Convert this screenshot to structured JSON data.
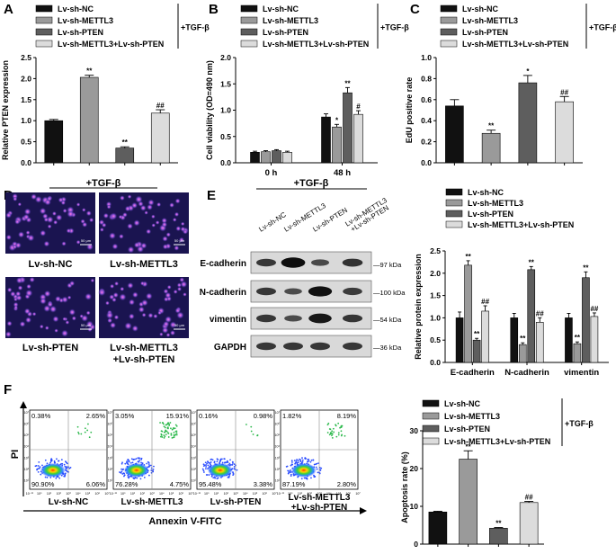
{
  "colors": {
    "nc": "#111111",
    "mettl3": "#9a9a9a",
    "pten": "#5e5e5e",
    "combo": "#dcdcdc"
  },
  "groups": [
    "Lv-sh-NC",
    "Lv-sh-METTL3",
    "Lv-sh-PTEN",
    "Lv-sh-METTL3+Lv-sh-PTEN"
  ],
  "treatment": "+TGF-β",
  "panels": {
    "A": "A",
    "B": "B",
    "C": "C",
    "D": "D",
    "E": "E",
    "F": "F"
  },
  "panelD": {
    "treatment": "+TGF-β",
    "scale_label": "50 μm",
    "labels": [
      "Lv-sh-NC",
      "Lv-sh-METTL3",
      "Lv-sh-PTEN",
      "Lv-sh-METTL3",
      "+Lv-sh-PTEN"
    ]
  },
  "panelE": {
    "treatment": "+TGF-β",
    "lanes": [
      "Lv-sh-NC",
      "Lv-sh-METTL3",
      "Lv-sh-PTEN",
      "Lv-sh-METTL3",
      "+Lv-sh-PTEN"
    ],
    "proteins": [
      "E-cadherin",
      "N-cadherin",
      "vimentin",
      "GAPDH"
    ],
    "kda": [
      "97 kDa",
      "100 kDa",
      "54 kDa",
      "36 kDa"
    ]
  },
  "panelF": {
    "quadrants": [
      [
        "0.38%",
        "2.65%",
        "90.90%",
        "6.06%"
      ],
      [
        "3.05%",
        "15.91%",
        "76.28%",
        "4.75%"
      ],
      [
        "0.16%",
        "0.98%",
        "95.48%",
        "3.38%"
      ],
      [
        "1.82%",
        "8.19%",
        "87.19%",
        "2.80%"
      ]
    ],
    "sample_labels": [
      "Lv-sh-NC",
      "Lv-sh-METTL3",
      "Lv-sh-PTEN",
      "Lv-sh-METTL3",
      "+Lv-sh-PTEN"
    ],
    "xlabel": "Annexin V-FITC",
    "ylabel": "PI",
    "ticks": [
      "10⁻¹⁰",
      "10⁰",
      "10¹",
      "10²",
      "10³",
      "10⁴",
      "10⁵",
      "10⁶",
      "10⁷"
    ],
    "ticks_y": [
      "10⁷",
      "10⁶",
      "10⁵",
      "10⁴",
      "10³",
      "10²",
      "10¹"
    ]
  },
  "chart_data": [
    {
      "id": "A",
      "type": "bar",
      "ylabel": "Relative PTEN expression",
      "ylim": [
        0,
        2.5
      ],
      "yticks": [
        "0.0",
        "0.5",
        "1.0",
        "1.5",
        "2.0",
        "2.5"
      ],
      "values": [
        1.0,
        2.03,
        0.35,
        1.18
      ],
      "errors": [
        0.03,
        0.05,
        0.03,
        0.08
      ],
      "marks": [
        "",
        "**",
        "**",
        "##"
      ],
      "legend": [
        "Lv-sh-NC",
        "Lv-sh-METTL3",
        "Lv-sh-PTEN",
        "Lv-sh-METTL3+Lv-sh-PTEN"
      ],
      "treatment": "+TGF-β"
    },
    {
      "id": "B",
      "type": "bar",
      "ylabel": "Cell viability (OD=490 nm)",
      "ylim": [
        0,
        2.0
      ],
      "yticks": [
        "0.0",
        "0.5",
        "1.0",
        "1.5",
        "2.0"
      ],
      "categories": [
        "0 h",
        "48 h"
      ],
      "series": [
        {
          "name": "Lv-sh-NC",
          "values": [
            0.2,
            0.87
          ],
          "errors": [
            0.02,
            0.06
          ],
          "marks": [
            "",
            ""
          ]
        },
        {
          "name": "Lv-sh-METTL3",
          "values": [
            0.21,
            0.68
          ],
          "errors": [
            0.02,
            0.05
          ],
          "marks": [
            "",
            "*"
          ]
        },
        {
          "name": "Lv-sh-PTEN",
          "values": [
            0.23,
            1.33
          ],
          "errors": [
            0.02,
            0.1
          ],
          "marks": [
            "",
            "**"
          ]
        },
        {
          "name": "Lv-sh-METTL3+Lv-sh-PTEN",
          "values": [
            0.2,
            0.92
          ],
          "errors": [
            0.02,
            0.07
          ],
          "marks": [
            "",
            "#"
          ]
        }
      ],
      "treatment": "+TGF-β"
    },
    {
      "id": "C",
      "type": "bar",
      "ylabel": "EdU positive rate",
      "ylim": [
        0,
        1.0
      ],
      "yticks": [
        "0.0",
        "0.2",
        "0.4",
        "0.6",
        "0.8",
        "1.0"
      ],
      "values": [
        0.54,
        0.28,
        0.76,
        0.58
      ],
      "errors": [
        0.06,
        0.03,
        0.07,
        0.05
      ],
      "marks": [
        "",
        "**",
        "*",
        "##"
      ],
      "legend": [
        "Lv-sh-NC",
        "Lv-sh-METTL3",
        "Lv-sh-PTEN",
        "Lv-sh-METTL3+Lv-sh-PTEN"
      ],
      "treatment": "+TGF-β"
    },
    {
      "id": "E",
      "type": "bar",
      "ylabel": "Relative protein expression",
      "ylim": [
        0,
        2.5
      ],
      "yticks": [
        "0.0",
        "0.5",
        "1.0",
        "1.5",
        "2.0",
        "2.5"
      ],
      "categories": [
        "E-cadherin",
        "N-cadherin",
        "vimentin"
      ],
      "series": [
        {
          "name": "Lv-sh-NC",
          "values": [
            1.0,
            1.0,
            1.0
          ],
          "errors": [
            0.13,
            0.1,
            0.1
          ],
          "marks": [
            "",
            "",
            ""
          ]
        },
        {
          "name": "Lv-sh-METTL3",
          "values": [
            2.18,
            0.4,
            0.42
          ],
          "errors": [
            0.1,
            0.04,
            0.04
          ],
          "marks": [
            "**",
            "**",
            "**"
          ]
        },
        {
          "name": "Lv-sh-PTEN",
          "values": [
            0.5,
            2.08,
            1.9
          ],
          "errors": [
            0.04,
            0.07,
            0.13
          ],
          "marks": [
            "**",
            "**",
            "**"
          ]
        },
        {
          "name": "Lv-sh-METTL3+Lv-sh-PTEN",
          "values": [
            1.15,
            0.9,
            1.03
          ],
          "errors": [
            0.12,
            0.1,
            0.08
          ],
          "marks": [
            "##",
            "##",
            "##"
          ]
        }
      ],
      "legend": [
        "Lv-sh-NC",
        "Lv-sh-METTL3",
        "Lv-sh-PTEN",
        "Lv-sh-METTL3+Lv-sh-PTEN"
      ]
    },
    {
      "id": "F",
      "type": "bar",
      "ylabel": "Apoptosis rate (%)",
      "ylim": [
        0,
        30
      ],
      "yticks": [
        "0",
        "10",
        "20",
        "30"
      ],
      "values": [
        8.5,
        22.5,
        4.2,
        11.0
      ],
      "errors": [
        0.2,
        2.2,
        0.2,
        0.3
      ],
      "marks": [
        "",
        "**",
        "**",
        "##"
      ],
      "legend": [
        "Lv-sh-NC",
        "Lv-sh-METTL3",
        "Lv-sh-PTEN",
        "Lv-sh-METTL3+Lv-sh-PTEN"
      ],
      "treatment": "+TGF-β"
    }
  ]
}
